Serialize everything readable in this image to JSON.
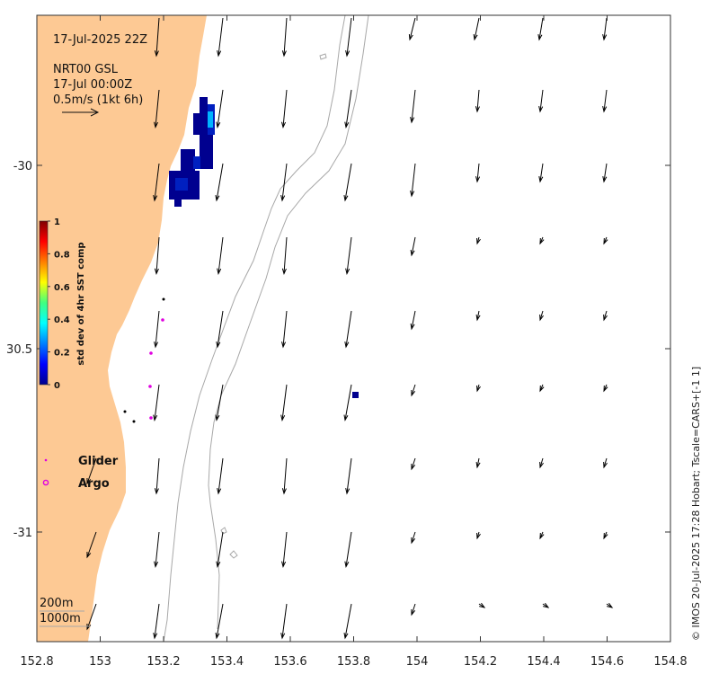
{
  "header": {
    "datetime": "17-Jul-2025 22Z",
    "product": "NRT00 GSL",
    "product_time": "17-Jul 00:00Z",
    "scale_label": "0.5m/s (1kt 6h)"
  },
  "axes": {
    "x_ticks": [
      "152.8",
      "153",
      "153.2",
      "153.4",
      "153.6",
      "153.8",
      "154",
      "154.2",
      "154.4",
      "154.6",
      "154.8"
    ],
    "y_ticks": [
      "-30",
      "30.5",
      "-31"
    ]
  },
  "colorbar": {
    "title": "std dev of 4hr SST comp",
    "ticks": [
      "1",
      "0.8",
      "0.6",
      "0.4",
      "0.2",
      "0"
    ]
  },
  "legend": {
    "glider": "Glider",
    "argo": "Argo"
  },
  "isobaths": {
    "shallow": "200m",
    "deep": "1000m"
  },
  "credit": "© IMOS 20-Jul-2025 17:28 Hobart; Tscale=CARS+[-1 1]",
  "colors": {
    "land": "#fdc994",
    "sst_dark": "#00008f",
    "sst_mid": "#0020c0",
    "sst_light": "#00b4ff",
    "argo": "#e000e0"
  }
}
